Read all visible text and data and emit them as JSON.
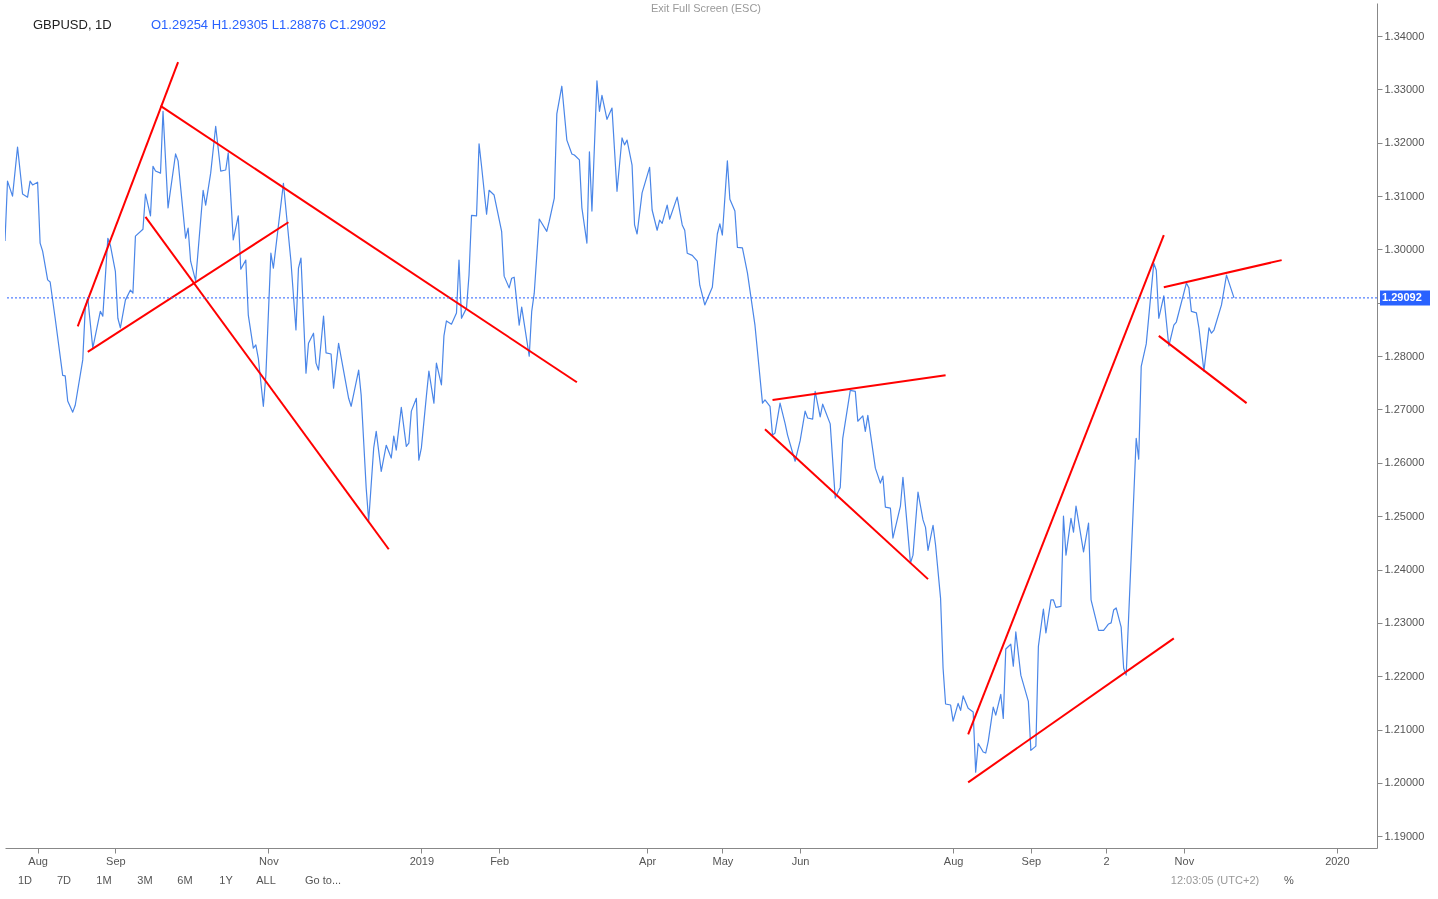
{
  "chart_data": {
    "type": "line",
    "title": "GBPUSD, 1D",
    "subtitle": "O1.29254 H1.29305 L1.28876 C1.29092",
    "xlim": [
      "2018-07-19",
      "2020-01-17"
    ],
    "xticks": [
      {
        "value": "2018-08-01",
        "label": "Aug"
      },
      {
        "value": "2018-09-01",
        "label": "Sep"
      },
      {
        "value": "2018-11-01",
        "label": "Nov"
      },
      {
        "value": "2019-01-01",
        "label": "2019"
      },
      {
        "value": "2019-02-01",
        "label": "Feb"
      },
      {
        "value": "2019-04-01",
        "label": "Apr"
      },
      {
        "value": "2019-05-01",
        "label": "May"
      },
      {
        "value": "2019-06-01",
        "label": "Jun"
      },
      {
        "value": "2019-08-01",
        "label": "Aug"
      },
      {
        "value": "2019-09-01",
        "label": "Sep"
      },
      {
        "value": "2019-10-01",
        "label": "2"
      },
      {
        "value": "2019-11-01",
        "label": "Nov"
      },
      {
        "value": "2020-01-01",
        "label": "2020"
      }
    ],
    "ylim": [
      1.1878,
      1.3462
    ],
    "yticks": [
      {
        "value": 1.19,
        "label": "1.19000"
      },
      {
        "value": 1.2,
        "label": "1.20000"
      },
      {
        "value": 1.21,
        "label": "1.21000"
      },
      {
        "value": 1.22,
        "label": "1.22000"
      },
      {
        "value": 1.23,
        "label": "1.23000"
      },
      {
        "value": 1.24,
        "label": "1.24000"
      },
      {
        "value": 1.25,
        "label": "1.25000"
      },
      {
        "value": 1.26,
        "label": "1.26000"
      },
      {
        "value": 1.27,
        "label": "1.27000"
      },
      {
        "value": 1.28,
        "label": "1.28000"
      },
      {
        "value": 1.29,
        "label": null
      },
      {
        "value": 1.3,
        "label": "1.30000"
      },
      {
        "value": 1.31,
        "label": "1.31000"
      },
      {
        "value": 1.32,
        "label": "1.32000"
      },
      {
        "value": 1.33,
        "label": "1.33000"
      },
      {
        "value": 1.34,
        "label": "1.34000"
      }
    ],
    "grid": false,
    "ref_lines": [
      {
        "axis": "y",
        "value": 1.29092,
        "label": "1.29092",
        "color": "#2962ff",
        "line_style": "dotted"
      }
    ],
    "annotations": [
      "Exit Full Screen (ESC)",
      "1D",
      "7D",
      "1M",
      "3M",
      "6M",
      "1Y",
      "ALL",
      "Go to...",
      "12:03:05 (UTC+2)",
      "%"
    ],
    "series": [
      {
        "color": "#4a86e8",
        "x": [
          "2018-07-19",
          "2018-07-20",
          "2018-07-22",
          "2018-07-24",
          "2018-07-26",
          "2018-07-28",
          "2018-07-29",
          "2018-07-30",
          "2018-08-01",
          "2018-08-02",
          "2018-08-03",
          "2018-08-05",
          "2018-08-06",
          "2018-08-08",
          "2018-08-11",
          "2018-08-12",
          "2018-08-13",
          "2018-08-15",
          "2018-08-16",
          "2018-08-19",
          "2018-08-20",
          "2018-08-21",
          "2018-08-23",
          "2018-08-26",
          "2018-08-27",
          "2018-08-29",
          "2018-08-30",
          "2018-09-01",
          "2018-09-02",
          "2018-09-03",
          "2018-09-05",
          "2018-09-07",
          "2018-09-08",
          "2018-09-09",
          "2018-09-12",
          "2018-09-13",
          "2018-09-15",
          "2018-09-16",
          "2018-09-17",
          "2018-09-19",
          "2018-09-20",
          "2018-09-22",
          "2018-09-25",
          "2018-09-26",
          "2018-09-29",
          "2018-09-30",
          "2018-10-01",
          "2018-10-03",
          "2018-10-06",
          "2018-10-07",
          "2018-10-09",
          "2018-10-11",
          "2018-10-13",
          "2018-10-15",
          "2018-10-16",
          "2018-10-18",
          "2018-10-20",
          "2018-10-21",
          "2018-10-23",
          "2018-10-24",
          "2018-10-26",
          "2018-10-27",
          "2018-10-28",
          "2018-10-30",
          "2018-10-31",
          "2018-11-02",
          "2018-11-03",
          "2018-11-07",
          "2018-11-10",
          "2018-11-12",
          "2018-11-13",
          "2018-11-14",
          "2018-11-16",
          "2018-11-17",
          "2018-11-19",
          "2018-11-20",
          "2018-11-21",
          "2018-11-23",
          "2018-11-24",
          "2018-11-26",
          "2018-11-27",
          "2018-11-29",
          "2018-12-03",
          "2018-12-04",
          "2018-12-07",
          "2018-12-08",
          "2018-12-10",
          "2018-12-11",
          "2018-12-13",
          "2018-12-14",
          "2018-12-16",
          "2018-12-18",
          "2018-12-20",
          "2018-12-21",
          "2018-12-22",
          "2018-12-24",
          "2018-12-26",
          "2018-12-27",
          "2018-12-28",
          "2018-12-30",
          "2018-12-31",
          "2019-01-01",
          "2019-01-03",
          "2019-01-04",
          "2019-01-06",
          "2019-01-07",
          "2019-01-09",
          "2019-01-10",
          "2019-01-11",
          "2019-01-13",
          "2019-01-15",
          "2019-01-16",
          "2019-01-17",
          "2019-01-19",
          "2019-01-20",
          "2019-01-21",
          "2019-01-23",
          "2019-01-24",
          "2019-01-25",
          "2019-01-27",
          "2019-01-28",
          "2019-01-30",
          "2019-02-02",
          "2019-02-03",
          "2019-02-05",
          "2019-02-06",
          "2019-02-07",
          "2019-02-09",
          "2019-02-10",
          "2019-02-13",
          "2019-02-14",
          "2019-02-15",
          "2019-02-17",
          "2019-02-20",
          "2019-02-21",
          "2019-02-23",
          "2019-02-24",
          "2019-02-26",
          "2019-02-28",
          "2019-03-02",
          "2019-03-03",
          "2019-03-05",
          "2019-03-06",
          "2019-03-08",
          "2019-03-09",
          "2019-03-10",
          "2019-03-12",
          "2019-03-13",
          "2019-03-14",
          "2019-03-16",
          "2019-03-18",
          "2019-03-20",
          "2019-03-22",
          "2019-03-23",
          "2019-03-24",
          "2019-03-26",
          "2019-03-27",
          "2019-03-28",
          "2019-03-30",
          "2019-04-02",
          "2019-04-03",
          "2019-04-05",
          "2019-04-06",
          "2019-04-07",
          "2019-04-09",
          "2019-04-10",
          "2019-04-13",
          "2019-04-15",
          "2019-04-16",
          "2019-04-17",
          "2019-04-19",
          "2019-04-21",
          "2019-04-22",
          "2019-04-24",
          "2019-04-27",
          "2019-04-29",
          "2019-04-30",
          "2019-05-01",
          "2019-05-03",
          "2019-05-04",
          "2019-05-06",
          "2019-05-07",
          "2019-05-09",
          "2019-05-11",
          "2019-05-14",
          "2019-05-17",
          "2019-05-18",
          "2019-05-20",
          "2019-05-21",
          "2019-05-22",
          "2019-05-24",
          "2019-05-26",
          "2019-05-27",
          "2019-05-30",
          "2019-06-01",
          "2019-06-03",
          "2019-06-04",
          "2019-06-06",
          "2019-06-07",
          "2019-06-09",
          "2019-06-10",
          "2019-06-13",
          "2019-06-15",
          "2019-06-17",
          "2019-06-18",
          "2019-06-21",
          "2019-06-23",
          "2019-06-24",
          "2019-06-26",
          "2019-06-27",
          "2019-06-28",
          "2019-07-01",
          "2019-07-03",
          "2019-07-04",
          "2019-07-05",
          "2019-07-07",
          "2019-07-08",
          "2019-07-11",
          "2019-07-12",
          "2019-07-15",
          "2019-07-16",
          "2019-07-18",
          "2019-07-20",
          "2019-07-21",
          "2019-07-22",
          "2019-07-24",
          "2019-07-25",
          "2019-07-27",
          "2019-07-28",
          "2019-07-29",
          "2019-07-31",
          "2019-08-01",
          "2019-08-03",
          "2019-08-04",
          "2019-08-05",
          "2019-08-07",
          "2019-08-09",
          "2019-08-10",
          "2019-08-11",
          "2019-08-13",
          "2019-08-14",
          "2019-08-15",
          "2019-08-17",
          "2019-08-18",
          "2019-08-20",
          "2019-08-21",
          "2019-08-22",
          "2019-08-24",
          "2019-08-25",
          "2019-08-26",
          "2019-08-28",
          "2019-08-31",
          "2019-09-01",
          "2019-09-03",
          "2019-09-04",
          "2019-09-06",
          "2019-09-07",
          "2019-09-09",
          "2019-09-10",
          "2019-09-11",
          "2019-09-13",
          "2019-09-14",
          "2019-09-15",
          "2019-09-17",
          "2019-09-18",
          "2019-09-19",
          "2019-09-22",
          "2019-09-24",
          "2019-09-25",
          "2019-09-28",
          "2019-09-30",
          "2019-10-02",
          "2019-10-03",
          "2019-10-04",
          "2019-10-05",
          "2019-10-07",
          "2019-10-08",
          "2019-10-09",
          "2019-10-13",
          "2019-10-14",
          "2019-10-15",
          "2019-10-17",
          "2019-10-20",
          "2019-10-21",
          "2019-10-22",
          "2019-10-24",
          "2019-10-26",
          "2019-10-28",
          "2019-10-29",
          "2019-11-02",
          "2019-11-03",
          "2019-11-04",
          "2019-11-06",
          "2019-11-07",
          "2019-11-09",
          "2019-11-11",
          "2019-11-12",
          "2019-11-13",
          "2019-11-16",
          "2019-11-18",
          "2019-11-21"
        ],
        "values": [
          1.3016,
          1.3128,
          1.31,
          1.3192,
          1.3104,
          1.3098,
          1.3128,
          1.3121,
          1.3126,
          1.3012,
          1.2997,
          1.2943,
          1.2939,
          1.2871,
          1.2764,
          1.2763,
          1.2716,
          1.2695,
          1.2708,
          1.2793,
          1.289,
          1.2909,
          1.2815,
          1.2884,
          1.2875,
          1.3021,
          1.3008,
          1.2959,
          1.2871,
          1.2853,
          1.2905,
          1.2924,
          1.2918,
          1.3025,
          1.3038,
          1.3104,
          1.3063,
          1.3156,
          1.3147,
          1.3143,
          1.3259,
          1.3078,
          1.3179,
          1.3166,
          1.3021,
          1.304,
          1.2978,
          1.2941,
          1.3111,
          1.3083,
          1.3143,
          1.3231,
          1.3147,
          1.3149,
          1.3181,
          1.3018,
          1.3063,
          1.2963,
          1.298,
          1.2877,
          1.2815,
          1.2821,
          1.2796,
          1.2706,
          1.2764,
          1.2993,
          1.2965,
          1.3124,
          1.2978,
          1.2849,
          1.2965,
          1.2984,
          1.2768,
          1.2824,
          1.2843,
          1.2787,
          1.2774,
          1.2875,
          1.2806,
          1.2804,
          1.274,
          1.2824,
          1.2721,
          1.2706,
          1.2774,
          1.2727,
          1.2553,
          1.2491,
          1.2628,
          1.2659,
          1.2584,
          1.2633,
          1.2609,
          1.265,
          1.2624,
          1.2704,
          1.2631,
          1.2637,
          1.2697,
          1.2721,
          1.2605,
          1.2628,
          1.2725,
          1.2772,
          1.2712,
          1.2787,
          1.2746,
          1.2838,
          1.2866,
          1.286,
          1.2881,
          1.298,
          1.2871,
          1.289,
          1.2952,
          1.3064,
          1.3063,
          1.3198,
          1.3156,
          1.3066,
          1.3111,
          1.3102,
          1.3034,
          1.295,
          1.2928,
          1.2946,
          1.2948,
          1.2858,
          1.2892,
          1.28,
          1.2884,
          1.2918,
          1.3057,
          1.3034,
          1.3053,
          1.3096,
          1.3254,
          1.3306,
          1.3205,
          1.3179,
          1.3177,
          1.3168,
          1.3078,
          1.3012,
          1.3183,
          1.3072,
          1.3316,
          1.3259,
          1.3289,
          1.3244,
          1.3265,
          1.3109,
          1.3209,
          1.3196,
          1.3205,
          1.3158,
          1.3046,
          1.3029,
          1.3106,
          1.3154,
          1.3074,
          1.3036,
          1.3055,
          1.3049,
          1.3083,
          1.3057,
          1.3098,
          1.3046,
          1.3036,
          1.2993,
          1.2989,
          1.2978,
          1.2933,
          1.2896,
          1.2929,
          1.3029,
          1.3048,
          1.3027,
          1.3166,
          1.3094,
          1.3072,
          1.3004,
          1.3003,
          1.2956,
          1.2858,
          1.2712,
          1.2718,
          1.2706,
          1.2652,
          1.2656,
          1.2712,
          1.2674,
          1.2652,
          1.2603,
          1.2641,
          1.2697,
          1.2684,
          1.2682,
          1.2734,
          1.2686,
          1.271,
          1.2673,
          1.2534,
          1.2554,
          1.2646,
          1.2736,
          1.2734,
          1.2678,
          1.2688,
          1.2659,
          1.2689,
          1.259,
          1.2562,
          1.2575,
          1.2517,
          1.2515,
          1.2459,
          1.2519,
          1.2573,
          1.2412,
          1.2427,
          1.2545,
          1.2493,
          1.2479,
          1.2436,
          1.2483,
          1.2446,
          1.2346,
          1.2215,
          1.2148,
          1.2146,
          1.2116,
          1.2149,
          1.2136,
          1.2163,
          1.214,
          1.2133,
          1.202,
          1.2074,
          1.2058,
          1.2056,
          1.2078,
          1.2142,
          1.2127,
          1.2166,
          1.2121,
          1.2251,
          1.226,
          1.2219,
          1.2283,
          1.2202,
          1.2153,
          1.2061,
          1.2069,
          1.2256,
          1.2326,
          1.2281,
          1.2343,
          1.2343,
          1.2329,
          1.2331,
          1.25,
          1.2427,
          1.2496,
          1.247,
          1.2519,
          1.2433,
          1.2487,
          1.2343,
          1.2286,
          1.2286,
          1.2298,
          1.23,
          1.2324,
          1.2328,
          1.2292,
          1.2215,
          1.2202,
          1.2646,
          1.2607,
          1.2781,
          1.2823,
          1.2974,
          1.2961,
          1.2871,
          1.2913,
          1.2819,
          1.2858,
          1.2864,
          1.2937,
          1.2928,
          1.2884,
          1.2881,
          1.2853,
          1.2772,
          1.2853,
          1.2843,
          1.2849,
          1.2896,
          1.2952,
          1.29092
        ]
      },
      {
        "color": "#ff0000",
        "x": [
          "2018-08-17",
          "2018-09-26"
        ],
        "values": [
          1.2856,
          1.3351
        ]
      },
      {
        "color": "#ff0000",
        "x": [
          "2018-09-19",
          "2019-03-04"
        ],
        "values": [
          1.3269,
          1.2751
        ]
      },
      {
        "color": "#ff0000",
        "x": [
          "2018-08-21",
          "2018-11-09"
        ],
        "values": [
          1.2808,
          1.3051
        ]
      },
      {
        "color": "#ff0000",
        "x": [
          "2018-09-13",
          "2018-12-19"
        ],
        "values": [
          1.3061,
          1.2438
        ]
      },
      {
        "color": "#ff0000",
        "x": [
          "2019-05-21",
          "2019-07-29"
        ],
        "values": [
          1.2718,
          1.2764
        ]
      },
      {
        "color": "#ff0000",
        "x": [
          "2019-05-18",
          "2019-07-22"
        ],
        "values": [
          1.2663,
          1.2382
        ]
      },
      {
        "color": "#ff0000",
        "x": [
          "2019-08-07",
          "2019-10-24"
        ],
        "values": [
          1.2091,
          1.3027
        ]
      },
      {
        "color": "#ff0000",
        "x": [
          "2019-08-07",
          "2019-10-28"
        ],
        "values": [
          1.2001,
          1.2271
        ]
      },
      {
        "color": "#ff0000",
        "x": [
          "2019-10-24",
          "2019-12-10"
        ],
        "values": [
          1.2929,
          1.298
        ]
      },
      {
        "color": "#ff0000",
        "x": [
          "2019-10-22",
          "2019-11-26"
        ],
        "values": [
          1.2838,
          1.2712
        ]
      }
    ]
  }
}
